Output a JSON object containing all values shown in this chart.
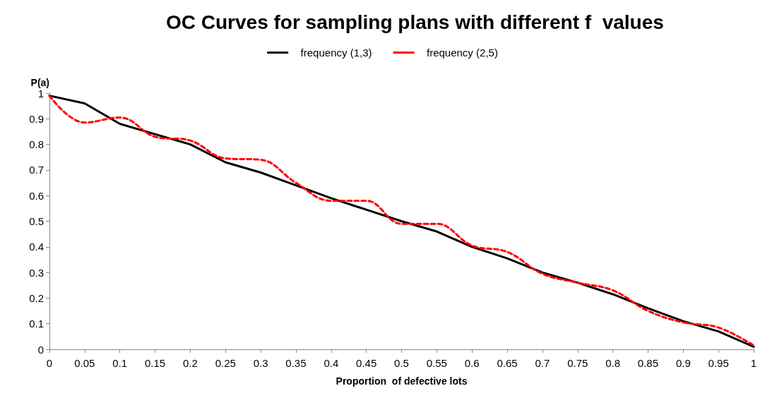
{
  "chart_data": {
    "type": "line",
    "title": "OC Curves for sampling plans with different f  values",
    "xlabel": "Proportion  of defective lots",
    "ylabel": "P(a)",
    "x": [
      0,
      0.05,
      0.1,
      0.15,
      0.2,
      0.25,
      0.3,
      0.35,
      0.4,
      0.45,
      0.5,
      0.55,
      0.6,
      0.65,
      0.7,
      0.75,
      0.8,
      0.85,
      0.9,
      0.95,
      1
    ],
    "series": [
      {
        "name": "frequency (1,3)",
        "color": "#000000",
        "line_style": "solid",
        "values": [
          0.99,
          0.96,
          0.88,
          0.84,
          0.8,
          0.73,
          0.69,
          0.64,
          0.59,
          0.545,
          0.5,
          0.46,
          0.4,
          0.355,
          0.3,
          0.26,
          0.215,
          0.16,
          0.11,
          0.07,
          0.01
        ]
      },
      {
        "name": "frequency (2,5)",
        "color": "#ff0000",
        "line_style": "dashed",
        "values": [
          0.99,
          0.885,
          0.905,
          0.83,
          0.815,
          0.745,
          0.74,
          0.65,
          0.58,
          0.58,
          0.49,
          0.49,
          0.405,
          0.38,
          0.295,
          0.26,
          0.23,
          0.15,
          0.105,
          0.085,
          0.015
        ]
      }
    ],
    "xlim": [
      0,
      1
    ],
    "xticks": [
      0,
      0.05,
      0.1,
      0.15,
      0.2,
      0.25,
      0.3,
      0.35,
      0.4,
      0.45,
      0.5,
      0.55,
      0.6,
      0.65,
      0.7,
      0.75,
      0.8,
      0.85,
      0.9,
      0.95,
      1
    ],
    "ylim": [
      0,
      1
    ],
    "yticks": [
      0,
      0.1,
      0.2,
      0.3,
      0.4,
      0.5,
      0.6,
      0.7,
      0.8,
      0.9,
      1
    ],
    "grid": false,
    "legend": "top",
    "marker": "none"
  }
}
